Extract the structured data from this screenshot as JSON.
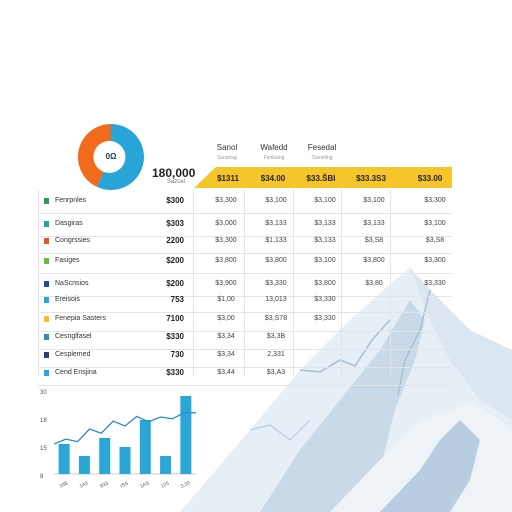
{
  "colors": {
    "accent_yellow": "#f6c52a",
    "donut_orange": "#f26b1d",
    "donut_blue": "#27a4d8",
    "bar_blue": "#2aa7d6",
    "line_blue": "#2a8fc4"
  },
  "summary": {
    "donut_label": "0Ω",
    "donut_split": [
      0.45,
      0.55
    ],
    "value": "180,000",
    "sub": "Sazcel"
  },
  "columns": [
    {
      "title": "",
      "sub": ""
    },
    {
      "title": "Sanol",
      "sub": "Scnarlag"
    },
    {
      "title": "Wafedd",
      "sub": "Fnnlaang"
    },
    {
      "title": "Fesedal",
      "sub": "Tasneling"
    },
    {
      "title": "",
      "sub": ""
    }
  ],
  "header_values": [
    "$1311",
    "$34.00",
    "$33.ŠBI",
    "$33.3S3",
    "$33.00"
  ],
  "rows": [
    {
      "name": "Fenrpnles",
      "color": "#2e9b5a",
      "amount": "$300",
      "cells": [
        "$3,300",
        "$3,100",
        "$3,100",
        "$3,100",
        "$3,300"
      ]
    },
    {
      "name": "Dasgiras",
      "color": "#1fa59e",
      "amount": "$303",
      "cells": [
        "$3,000",
        "$3,133",
        "$3,133",
        "$3,133",
        "$3,100"
      ]
    },
    {
      "name": "Congrssies",
      "color": "#e3572a",
      "amount": "2200",
      "cells": [
        "$3,300",
        "$1,133",
        "$3,133",
        "$3,S8",
        "$3,S8"
      ]
    },
    {
      "name": "Fasiges",
      "color": "#68b84a",
      "amount": "$200",
      "cells": [
        "$3,800",
        "$3,800",
        "$3,100",
        "$3,800",
        "$3,300"
      ]
    },
    {
      "name": "NaScnsios",
      "color": "#2c4a92",
      "amount": "$200",
      "cells": [
        "$3,900",
        "$3,330",
        "$3,800",
        "$3,80",
        "$3,330"
      ]
    },
    {
      "name": "Ereisois",
      "color": "#2aa7d6",
      "amount": "753",
      "cells": [
        "$1,00",
        "13,013",
        "$3,330",
        "",
        ""
      ]
    },
    {
      "name": "Fenepia Sasters",
      "color": "#f4c12b",
      "amount": "7100",
      "cells": [
        "$3,00",
        "$3,S78",
        "$3,330",
        "",
        ""
      ]
    },
    {
      "name": "Cesnglfasel",
      "color": "#2c8fa8",
      "amount": "$330",
      "cells": [
        "$3,34",
        "$3,3B",
        "",
        "",
        ""
      ]
    },
    {
      "name": "Cesplemed",
      "color": "#2f3f7a",
      "amount": "730",
      "cells": [
        "$3,34",
        "2,331",
        "",
        "",
        ""
      ]
    },
    {
      "name": "Cend Ensjina",
      "color": "#2aa7d6",
      "amount": "$330",
      "cells": [
        "$3,44",
        "$3,A3",
        "",
        "",
        ""
      ]
    }
  ],
  "mini_chart": {
    "type": "bar",
    "y_ticks": [
      "30",
      "18",
      "15",
      "8"
    ],
    "x_ticks": [
      "33$",
      "1A5",
      "833",
      "ISS",
      "1AS",
      "125",
      "3.20"
    ],
    "bars": [
      5,
      3,
      6,
      4.5,
      9,
      3,
      13
    ],
    "line": [
      5,
      5.8,
      5.4,
      7.5,
      6.8,
      8.8,
      8.0,
      9.6,
      8.7,
      9.5,
      9.2,
      10.2,
      10.2
    ],
    "ylim": [
      0,
      14
    ]
  }
}
